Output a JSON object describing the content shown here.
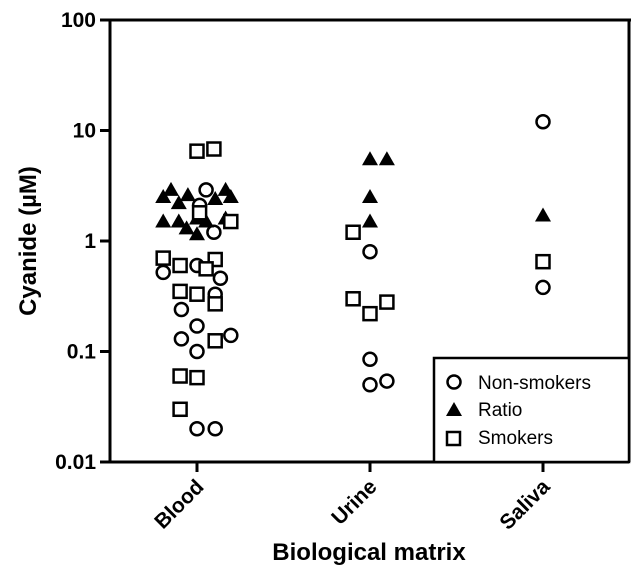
{
  "chart_data": {
    "type": "scatter",
    "title": "",
    "xlabel": "Biological matrix",
    "ylabel": "Cyanide (µM)",
    "yscale": "log",
    "ylim": [
      0.01,
      100
    ],
    "yticks": [
      "0.01",
      "0.1",
      "1",
      "10",
      "100"
    ],
    "categories": [
      "Blood",
      "Urine",
      "Saliva"
    ],
    "legend": {
      "position": "bottom-right",
      "entries": [
        "Non-smokers",
        "Ratio",
        "Smokers"
      ]
    },
    "series": [
      {
        "name": "Non-smokers",
        "marker": "circle-open",
        "points": [
          {
            "x": "Blood",
            "offset": 0.35,
            "y": 2.9
          },
          {
            "x": "Blood",
            "offset": 0.1,
            "y": 2.1
          },
          {
            "x": "Blood",
            "offset": 0.65,
            "y": 1.2
          },
          {
            "x": "Blood",
            "offset": -1.3,
            "y": 0.52
          },
          {
            "x": "Blood",
            "offset": 0.9,
            "y": 0.46
          },
          {
            "x": "Blood",
            "offset": 0.0,
            "y": 0.6
          },
          {
            "x": "Blood",
            "offset": 0.7,
            "y": 0.33
          },
          {
            "x": "Blood",
            "offset": -0.6,
            "y": 0.24
          },
          {
            "x": "Blood",
            "offset": 0.0,
            "y": 0.17
          },
          {
            "x": "Blood",
            "offset": 1.3,
            "y": 0.14
          },
          {
            "x": "Blood",
            "offset": -0.6,
            "y": 0.13
          },
          {
            "x": "Blood",
            "offset": 0.0,
            "y": 0.1
          },
          {
            "x": "Blood",
            "offset": 0.0,
            "y": 0.02
          },
          {
            "x": "Blood",
            "offset": 0.7,
            "y": 0.02
          },
          {
            "x": "Urine",
            "offset": 0.0,
            "y": 0.8
          },
          {
            "x": "Urine",
            "offset": 0.0,
            "y": 0.085
          },
          {
            "x": "Urine",
            "offset": 0.0,
            "y": 0.05
          },
          {
            "x": "Urine",
            "offset": 0.65,
            "y": 0.054
          },
          {
            "x": "Saliva",
            "offset": 0.0,
            "y": 12
          },
          {
            "x": "Saliva",
            "offset": 0.0,
            "y": 0.38
          }
        ]
      },
      {
        "name": "Ratio",
        "marker": "triangle-filled",
        "points": [
          {
            "x": "Blood",
            "offset": -1.0,
            "y": 2.9
          },
          {
            "x": "Blood",
            "offset": -0.35,
            "y": 2.6
          },
          {
            "x": "Blood",
            "offset": 1.1,
            "y": 2.9
          },
          {
            "x": "Blood",
            "offset": 1.3,
            "y": 2.5
          },
          {
            "x": "Blood",
            "offset": -1.3,
            "y": 2.5
          },
          {
            "x": "Blood",
            "offset": 0.7,
            "y": 2.4
          },
          {
            "x": "Blood",
            "offset": -0.7,
            "y": 2.2
          },
          {
            "x": "Blood",
            "offset": -1.3,
            "y": 1.5
          },
          {
            "x": "Blood",
            "offset": -0.7,
            "y": 1.5
          },
          {
            "x": "Blood",
            "offset": 0.0,
            "y": 1.6
          },
          {
            "x": "Blood",
            "offset": 0.35,
            "y": 1.5
          },
          {
            "x": "Blood",
            "offset": 1.1,
            "y": 1.6
          },
          {
            "x": "Blood",
            "offset": -0.4,
            "y": 1.3
          },
          {
            "x": "Blood",
            "offset": 0.0,
            "y": 1.15
          },
          {
            "x": "Urine",
            "offset": 0.0,
            "y": 5.5
          },
          {
            "x": "Urine",
            "offset": 0.65,
            "y": 5.5
          },
          {
            "x": "Urine",
            "offset": 0.0,
            "y": 2.5
          },
          {
            "x": "Urine",
            "offset": 0.0,
            "y": 1.5
          },
          {
            "x": "Saliva",
            "offset": 0.0,
            "y": 1.7
          }
        ]
      },
      {
        "name": "Smokers",
        "marker": "square-open",
        "points": [
          {
            "x": "Blood",
            "offset": 0.0,
            "y": 6.5
          },
          {
            "x": "Blood",
            "offset": 0.65,
            "y": 6.8
          },
          {
            "x": "Blood",
            "offset": 0.1,
            "y": 1.8
          },
          {
            "x": "Blood",
            "offset": 1.3,
            "y": 1.5
          },
          {
            "x": "Blood",
            "offset": -1.3,
            "y": 0.7
          },
          {
            "x": "Blood",
            "offset": 0.7,
            "y": 0.68
          },
          {
            "x": "Blood",
            "offset": -0.65,
            "y": 0.6
          },
          {
            "x": "Blood",
            "offset": 0.35,
            "y": 0.56
          },
          {
            "x": "Blood",
            "offset": -0.65,
            "y": 0.35
          },
          {
            "x": "Blood",
            "offset": 0.0,
            "y": 0.33
          },
          {
            "x": "Blood",
            "offset": 0.7,
            "y": 0.27
          },
          {
            "x": "Blood",
            "offset": 0.7,
            "y": 0.125
          },
          {
            "x": "Blood",
            "offset": -0.65,
            "y": 0.06
          },
          {
            "x": "Blood",
            "offset": 0.0,
            "y": 0.058
          },
          {
            "x": "Blood",
            "offset": -0.65,
            "y": 0.03
          },
          {
            "x": "Urine",
            "offset": -0.65,
            "y": 1.2
          },
          {
            "x": "Urine",
            "offset": -0.65,
            "y": 0.3
          },
          {
            "x": "Urine",
            "offset": 0.0,
            "y": 0.22
          },
          {
            "x": "Urine",
            "offset": 0.65,
            "y": 0.28
          },
          {
            "x": "Saliva",
            "offset": 0.0,
            "y": 0.65
          }
        ]
      }
    ]
  }
}
